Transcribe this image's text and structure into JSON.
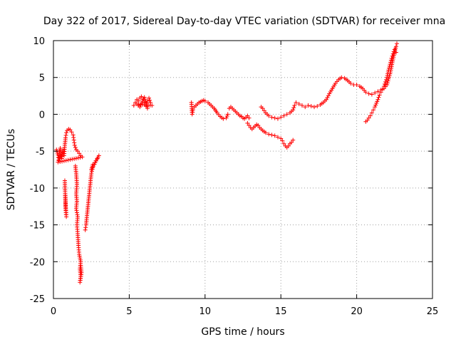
{
  "chart_data": {
    "type": "scatter",
    "title": "Day 322 of 2017, Sidereal Day-to-day VTEC variation (SDTVAR) for receiver mna",
    "xlabel": "GPS time / hours",
    "ylabel": "SDTVAR / TECUs",
    "xlim": [
      0,
      25
    ],
    "ylim": [
      -25,
      10
    ],
    "xticks": [
      0,
      5,
      10,
      15,
      20,
      25
    ],
    "yticks": [
      -25,
      -20,
      -15,
      -10,
      -5,
      0,
      5,
      10
    ],
    "x_tick_labels": [
      "0",
      "5",
      "10",
      "15",
      "20",
      "25"
    ],
    "y_tick_labels": [
      "-25",
      "-20",
      "-15",
      "-10",
      "-5",
      "0",
      "5",
      "10"
    ],
    "grid": true,
    "marker": "+",
    "color": "#ff0000",
    "series": [
      {
        "name": "SDTVAR",
        "segments": [
          [
            [
              0.2,
              -4.8
            ],
            [
              0.3,
              -5.5
            ],
            [
              0.35,
              -6.2
            ],
            [
              0.4,
              -5.0
            ],
            [
              0.45,
              -4.6
            ],
            [
              0.5,
              -5.4
            ],
            [
              0.55,
              -6.0
            ],
            [
              0.6,
              -5.2
            ],
            [
              0.65,
              -4.8
            ],
            [
              0.7,
              -5.6
            ],
            [
              0.75,
              -4.2
            ],
            [
              0.8,
              -3.2
            ],
            [
              0.85,
              -2.5
            ],
            [
              0.9,
              -2.2
            ],
            [
              1.0,
              -2.0
            ],
            [
              1.1,
              -2.1
            ],
            [
              1.2,
              -2.4
            ],
            [
              1.3,
              -2.8
            ],
            [
              1.35,
              -3.5
            ],
            [
              1.4,
              -4.2
            ],
            [
              1.5,
              -4.8
            ],
            [
              1.6,
              -5.0
            ],
            [
              1.7,
              -5.3
            ],
            [
              1.8,
              -5.6
            ],
            [
              1.9,
              -5.8
            ],
            [
              0.3,
              -6.5
            ],
            [
              0.45,
              -5.8
            ]
          ],
          [
            [
              0.75,
              -9.0
            ],
            [
              0.77,
              -10.5
            ],
            [
              0.8,
              -11.8
            ],
            [
              0.82,
              -13.0
            ],
            [
              0.85,
              -13.9
            ],
            [
              0.8,
              -12.5
            ],
            [
              0.78,
              -11.0
            ]
          ],
          [
            [
              1.45,
              -7.0
            ],
            [
              1.5,
              -8.0
            ],
            [
              1.55,
              -9.5
            ],
            [
              1.5,
              -10.8
            ],
            [
              1.55,
              -11.8
            ],
            [
              1.5,
              -12.8
            ],
            [
              1.6,
              -13.9
            ],
            [
              1.55,
              -15.0
            ],
            [
              1.6,
              -16.2
            ],
            [
              1.65,
              -17.8
            ],
            [
              1.7,
              -19.0
            ],
            [
              1.8,
              -20.0
            ],
            [
              1.75,
              -21.0
            ],
            [
              1.8,
              -22.0
            ],
            [
              1.75,
              -22.8
            ],
            [
              1.85,
              -21.5
            ],
            [
              1.8,
              -20.5
            ]
          ],
          [
            [
              2.1,
              -15.7
            ],
            [
              2.15,
              -15.0
            ],
            [
              2.2,
              -14.0
            ],
            [
              2.25,
              -13.0
            ],
            [
              2.3,
              -12.0
            ],
            [
              2.35,
              -11.0
            ],
            [
              2.4,
              -10.0
            ],
            [
              2.45,
              -9.0
            ],
            [
              2.5,
              -8.0
            ],
            [
              2.6,
              -7.2
            ],
            [
              2.7,
              -6.8
            ],
            [
              2.8,
              -6.3
            ],
            [
              2.9,
              -6.0
            ],
            [
              3.0,
              -5.6
            ],
            [
              2.5,
              -7.5
            ],
            [
              2.6,
              -6.8
            ]
          ],
          [
            [
              5.3,
              1.2
            ],
            [
              5.4,
              1.6
            ],
            [
              5.5,
              2.0
            ],
            [
              5.6,
              1.8
            ],
            [
              5.7,
              2.2
            ],
            [
              5.8,
              2.4
            ],
            [
              5.9,
              2.0
            ],
            [
              6.0,
              1.6
            ],
            [
              6.1,
              1.2
            ],
            [
              6.2,
              1.8
            ],
            [
              6.3,
              2.2
            ],
            [
              6.4,
              1.6
            ],
            [
              6.5,
              1.2
            ],
            [
              5.5,
              1.4
            ],
            [
              5.7,
              1.0
            ],
            [
              6.0,
              2.3
            ],
            [
              6.2,
              0.8
            ]
          ],
          [
            [
              9.1,
              1.6
            ],
            [
              9.15,
              0.0
            ],
            [
              9.2,
              0.6
            ],
            [
              9.3,
              1.0
            ],
            [
              9.4,
              1.2
            ],
            [
              9.5,
              1.4
            ],
            [
              9.6,
              1.6
            ],
            [
              9.7,
              1.7
            ],
            [
              9.8,
              1.8
            ],
            [
              9.9,
              1.9
            ],
            [
              10.0,
              1.8
            ],
            [
              10.2,
              1.6
            ],
            [
              10.4,
              1.2
            ],
            [
              10.6,
              0.8
            ],
            [
              10.8,
              0.2
            ],
            [
              11.0,
              -0.3
            ],
            [
              11.2,
              -0.6
            ],
            [
              11.4,
              -0.5
            ],
            [
              11.5,
              0.0
            ]
          ],
          [
            [
              11.6,
              0.8
            ],
            [
              11.7,
              1.0
            ],
            [
              11.8,
              0.8
            ],
            [
              11.9,
              0.6
            ],
            [
              12.0,
              0.4
            ],
            [
              12.1,
              0.2
            ],
            [
              12.2,
              0.0
            ],
            [
              12.3,
              -0.2
            ],
            [
              12.4,
              -0.3
            ],
            [
              12.5,
              -0.5
            ],
            [
              12.6,
              -0.6
            ],
            [
              12.7,
              -0.4
            ],
            [
              12.8,
              -0.2
            ],
            [
              12.9,
              -0.5
            ]
          ],
          [
            [
              12.8,
              -1.2
            ],
            [
              12.9,
              -1.5
            ],
            [
              13.0,
              -1.8
            ],
            [
              13.1,
              -2.0
            ],
            [
              13.2,
              -1.8
            ],
            [
              13.3,
              -1.6
            ],
            [
              13.4,
              -1.4
            ],
            [
              13.5,
              -1.5
            ],
            [
              13.6,
              -1.8
            ],
            [
              13.8,
              -2.2
            ],
            [
              14.0,
              -2.5
            ],
            [
              14.2,
              -2.7
            ],
            [
              14.4,
              -2.8
            ],
            [
              14.6,
              -2.9
            ],
            [
              14.8,
              -3.1
            ],
            [
              15.0,
              -3.3
            ],
            [
              15.1,
              -3.6
            ],
            [
              15.2,
              -4.0
            ],
            [
              15.3,
              -4.3
            ],
            [
              15.4,
              -4.5
            ],
            [
              15.5,
              -4.3
            ],
            [
              15.6,
              -4.0
            ],
            [
              15.7,
              -3.8
            ],
            [
              15.8,
              -3.5
            ]
          ],
          [
            [
              13.7,
              1.0
            ],
            [
              13.8,
              0.8
            ],
            [
              13.9,
              0.5
            ],
            [
              14.0,
              0.2
            ],
            [
              14.2,
              -0.2
            ],
            [
              14.4,
              -0.4
            ],
            [
              14.6,
              -0.5
            ],
            [
              14.8,
              -0.6
            ],
            [
              15.0,
              -0.4
            ],
            [
              15.2,
              -0.2
            ],
            [
              15.4,
              0.0
            ],
            [
              15.6,
              0.2
            ],
            [
              15.8,
              0.6
            ],
            [
              15.9,
              1.2
            ],
            [
              16.0,
              1.6
            ],
            [
              16.2,
              1.4
            ],
            [
              16.4,
              1.2
            ],
            [
              16.6,
              1.0
            ],
            [
              16.8,
              1.2
            ],
            [
              17.0,
              1.1
            ],
            [
              17.2,
              1.0
            ],
            [
              17.4,
              1.1
            ],
            [
              17.6,
              1.3
            ],
            [
              17.8,
              1.6
            ],
            [
              18.0,
              2.0
            ],
            [
              18.2,
              2.8
            ],
            [
              18.4,
              3.5
            ],
            [
              18.6,
              4.2
            ],
            [
              18.8,
              4.7
            ],
            [
              19.0,
              5.0
            ],
            [
              19.2,
              4.9
            ],
            [
              19.4,
              4.6
            ],
            [
              19.6,
              4.2
            ],
            [
              19.8,
              4.0
            ],
            [
              20.0,
              4.0
            ],
            [
              20.2,
              3.8
            ],
            [
              20.4,
              3.5
            ],
            [
              20.6,
              3.0
            ],
            [
              20.8,
              2.8
            ],
            [
              21.0,
              2.7
            ],
            [
              21.2,
              2.9
            ],
            [
              21.4,
              3.1
            ],
            [
              21.6,
              3.3
            ],
            [
              21.8,
              3.5
            ],
            [
              22.0,
              4.0
            ],
            [
              22.1,
              4.8
            ],
            [
              22.2,
              5.5
            ],
            [
              22.3,
              6.5
            ],
            [
              22.4,
              7.5
            ],
            [
              22.5,
              8.5
            ],
            [
              22.6,
              9.2
            ],
            [
              22.65,
              9.6
            ]
          ],
          [
            [
              20.6,
              -1.0
            ],
            [
              20.7,
              -0.8
            ],
            [
              20.8,
              -0.5
            ],
            [
              20.9,
              -0.2
            ],
            [
              21.0,
              0.2
            ],
            [
              21.1,
              0.6
            ],
            [
              21.2,
              1.0
            ],
            [
              21.3,
              1.5
            ],
            [
              21.4,
              2.0
            ],
            [
              21.5,
              2.6
            ],
            [
              21.6,
              3.0
            ],
            [
              21.7,
              3.4
            ],
            [
              21.8,
              3.8
            ],
            [
              21.9,
              4.4
            ],
            [
              22.0,
              5.0
            ],
            [
              22.1,
              6.0
            ],
            [
              22.2,
              6.8
            ],
            [
              22.3,
              7.6
            ],
            [
              22.4,
              8.2
            ],
            [
              22.5,
              8.8
            ],
            [
              22.6,
              8.4
            ]
          ]
        ]
      }
    ]
  }
}
